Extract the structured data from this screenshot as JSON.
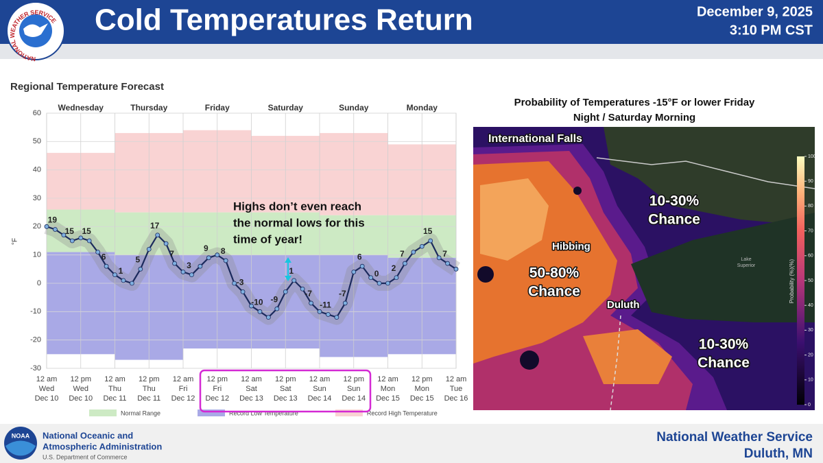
{
  "header": {
    "title": "Cold Temperatures Return",
    "date": "December 9, 2025",
    "time": "3:10 PM CST",
    "logo_text": "NATIONAL WEATHER SERVICE"
  },
  "chart_data": {
    "type": "line",
    "title": "Regional Temperature Forecast",
    "y_label": "°F",
    "day_labels": [
      "Wednesday",
      "Thursday",
      "Friday",
      "Saturday",
      "Sunday",
      "Monday"
    ],
    "xlim": [
      0,
      144
    ],
    "xticks": [
      {
        "value": 0,
        "label": "12 am"
      },
      {
        "value": 12,
        "label": "12 pm"
      },
      {
        "value": 24,
        "label": "12 am"
      },
      {
        "value": 36,
        "label": "12 pm"
      },
      {
        "value": 48,
        "label": "12 am"
      },
      {
        "value": 60,
        "label": "12 pm"
      },
      {
        "value": 72,
        "label": "12 am"
      },
      {
        "value": 84,
        "label": "12 pm"
      },
      {
        "value": 96,
        "label": "12 am"
      },
      {
        "value": 108,
        "label": "12 pm"
      },
      {
        "value": 120,
        "label": "12 am"
      },
      {
        "value": 132,
        "label": "12 pm"
      },
      {
        "value": 144,
        "label": "12 am"
      }
    ],
    "xtick_days": [
      "Wed",
      "Wed",
      "Thu",
      "Thu",
      "Fri",
      "Fri",
      "Sat",
      "Sat",
      "Sun",
      "Sun",
      "Mon",
      "Mon",
      "Tue"
    ],
    "xtick_dates": [
      "Dec 10",
      "Dec 10",
      "Dec 11",
      "Dec 11",
      "Dec 12",
      "Dec 12",
      "Dec 13",
      "Dec 13",
      "Dec 14",
      "Dec 14",
      "Dec 15",
      "Dec 15",
      "Dec 16"
    ],
    "ylim": [
      -30,
      60
    ],
    "yticks": [
      -30,
      -20,
      -10,
      0,
      10,
      20,
      30,
      40,
      50,
      60
    ],
    "grid": true,
    "x": [
      0,
      3,
      6,
      9,
      12,
      15,
      18,
      21,
      24,
      27,
      30,
      33,
      36,
      39,
      42,
      45,
      48,
      51,
      54,
      57,
      60,
      63,
      66,
      69,
      72,
      75,
      78,
      81,
      84,
      87,
      90,
      93,
      96,
      99,
      102,
      105,
      108,
      111,
      114,
      117,
      120,
      123,
      126,
      129,
      132,
      135,
      138,
      141,
      144
    ],
    "series": [
      {
        "color": "#1b2a5c",
        "marker_color": "#7fb0e0",
        "values": [
          20,
          19,
          17,
          15,
          16,
          15,
          11,
          6,
          3,
          1,
          0,
          5,
          12,
          17,
          14,
          7,
          4,
          3,
          6,
          9,
          10,
          8,
          0,
          -3,
          -8,
          -10,
          -12,
          -9,
          -3,
          1,
          -2,
          -7,
          -10,
          -11,
          -12,
          -7,
          4,
          6,
          2,
          0,
          0,
          2,
          7,
          11,
          13,
          15,
          9,
          7,
          5
        ],
        "value_labels": [
          null,
          "19",
          null,
          "15",
          null,
          "15",
          null,
          "6",
          null,
          "1",
          null,
          "5",
          null,
          "17",
          null,
          "7",
          null,
          "3",
          null,
          "9",
          null,
          "8",
          null,
          "-3",
          null,
          "-10",
          null,
          "-9",
          null,
          "1",
          null,
          "-7",
          null,
          "-11",
          null,
          "-7",
          null,
          "6",
          null,
          "0",
          null,
          "2",
          "7",
          null,
          null,
          "15",
          null,
          "7",
          null
        ]
      }
    ],
    "range_x": [
      0,
      24,
      48,
      72,
      96,
      120
    ],
    "ranges": [
      {
        "name": "Normal Range",
        "color": "#cdeac4",
        "high": [
          26,
          25,
          25,
          25,
          24,
          24
        ],
        "low": [
          11,
          10,
          10,
          10,
          10,
          9
        ]
      },
      {
        "name": "Record Low Temperature",
        "color": "#a9a9e6",
        "values": [
          -25,
          -27,
          -23,
          -23,
          -26,
          -25
        ]
      },
      {
        "name": "Record High Temperature",
        "color": "#f9d3d3",
        "values": [
          46,
          53,
          54,
          52,
          53,
          49
        ]
      }
    ],
    "annotation": [
      "Highs don’t even reach",
      "the normal lows for this",
      "time of year!"
    ]
  },
  "map": {
    "title": [
      "Probability of Temperatures -15°F or lower Friday",
      "Night / Saturday Morning"
    ],
    "places": [
      "International Falls",
      "Hibbing",
      "Duluth"
    ],
    "lake": [
      "Lake",
      "Superior"
    ],
    "zones": [
      {
        "range": "50-80%",
        "text": "Chance"
      },
      {
        "range": "10-30%",
        "text": "Chance"
      },
      {
        "range": "10-30%",
        "text": "Chance"
      }
    ],
    "colorbar": {
      "label": "Probability (%)(%)",
      "lim": [
        0,
        100
      ],
      "ticks": [
        0,
        10,
        20,
        30,
        40,
        50,
        60,
        70,
        80,
        90,
        100
      ]
    }
  },
  "footer": {
    "agency": [
      "National Oceanic and",
      "Atmospheric Administration"
    ],
    "department": "U.S. Department of Commerce",
    "noaa": "NOAA",
    "office": [
      "National Weather Service",
      "Duluth, MN"
    ]
  }
}
